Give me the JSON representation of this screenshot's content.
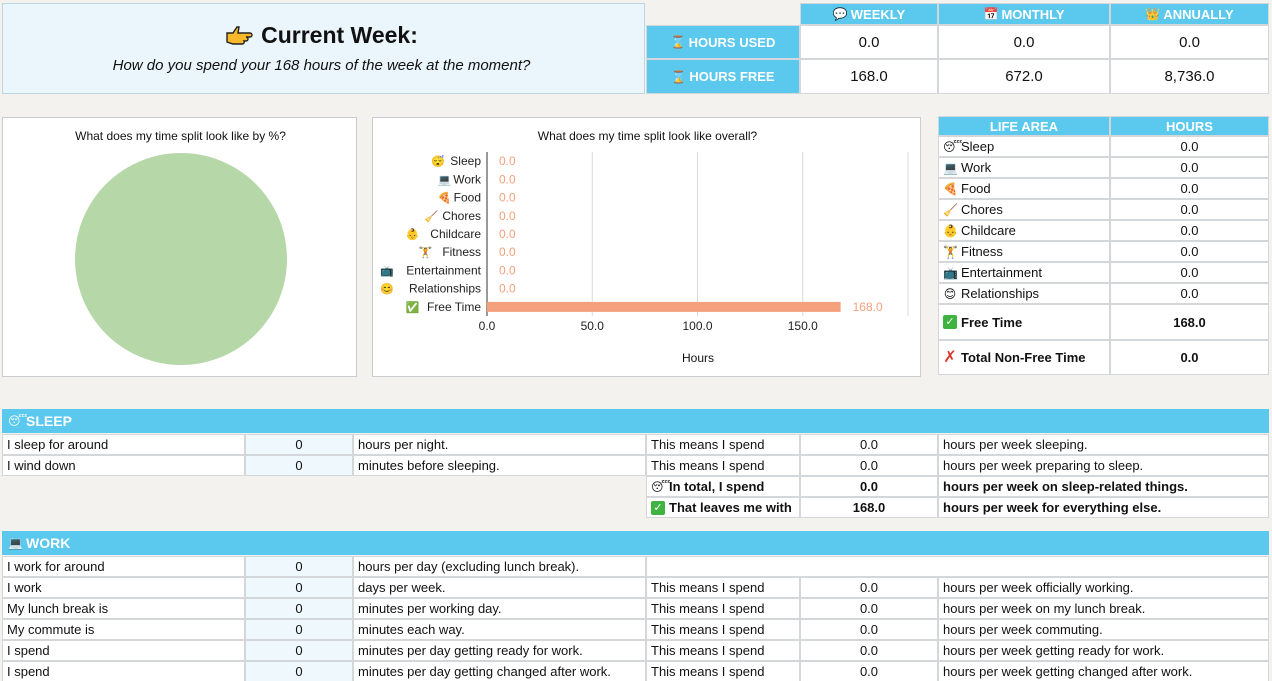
{
  "header": {
    "title": "Current Week:",
    "subtitle": "How do you spend your 168 hours of the week at the moment?",
    "icon": "pointing-hand-icon"
  },
  "summary": {
    "cols": [
      "WEEKLY",
      "MONTHLY",
      "ANNUALLY"
    ],
    "rows": [
      {
        "label": "HOURS USED",
        "values": [
          "0.0",
          "0.0",
          "0.0"
        ]
      },
      {
        "label": "HOURS FREE",
        "values": [
          "168.0",
          "672.0",
          "8,736.0"
        ]
      }
    ]
  },
  "pie_chart": {
    "title": "What does my time split look like by %?",
    "color": "#b6d7a8"
  },
  "chart_data": {
    "type": "bar",
    "title": "What does my time split look like overall?",
    "xlabel": "Hours",
    "ylabel": "",
    "categories": [
      "Sleep",
      "Work",
      "Food",
      "Chores",
      "Childcare",
      "Fitness",
      "Entertainment",
      "Relationships",
      "Free Time"
    ],
    "values": [
      0.0,
      0.0,
      0.0,
      0.0,
      0.0,
      0.0,
      0.0,
      0.0,
      168.0
    ],
    "value_labels": [
      "0.0",
      "0.0",
      "0.0",
      "0.0",
      "0.0",
      "0.0",
      "0.0",
      "0.0",
      "168.0"
    ],
    "xlim": [
      0,
      200
    ],
    "xticks": [
      "0.0",
      "50.0",
      "100.0",
      "150.0"
    ],
    "grid": true,
    "bar_color": "#f4a07c"
  },
  "life_area": {
    "headers": [
      "LIFE AREA",
      "HOURS"
    ],
    "rows": [
      {
        "label": "Sleep",
        "value": "0.0"
      },
      {
        "label": "Work",
        "value": "0.0"
      },
      {
        "label": "Food",
        "value": "0.0"
      },
      {
        "label": "Chores",
        "value": "0.0"
      },
      {
        "label": "Childcare",
        "value": "0.0"
      },
      {
        "label": "Fitness",
        "value": "0.0"
      },
      {
        "label": "Entertainment",
        "value": "0.0"
      },
      {
        "label": "Relationships",
        "value": "0.0"
      }
    ],
    "free_time": {
      "label": "Free Time",
      "value": "168.0"
    },
    "non_free": {
      "label": "Total Non-Free Time",
      "value": "0.0"
    }
  },
  "sleep": {
    "title": "SLEEP",
    "rows": [
      {
        "label": "I sleep for around",
        "input": "0",
        "unit": "hours per night.",
        "means": "This means I spend",
        "value": "0.0",
        "result": "hours per week sleeping."
      },
      {
        "label": "I wind down",
        "input": "0",
        "unit": "minutes before sleeping.",
        "means": "This means I spend",
        "value": "0.0",
        "result": "hours per week preparing to sleep."
      }
    ],
    "total": {
      "label": "In total, I spend",
      "value": "0.0",
      "result": "hours per week on sleep-related things."
    },
    "leaves": {
      "label": "That leaves me with",
      "value": "168.0",
      "result": "hours per week for everything else."
    }
  },
  "work": {
    "title": "WORK",
    "first": {
      "label": "I work for around",
      "input": "0",
      "unit": "hours per day (excluding lunch break)."
    },
    "rows": [
      {
        "label": "I work",
        "input": "0",
        "unit": "days per week.",
        "means": "This means I spend",
        "value": "0.0",
        "result": "hours per week officially working."
      },
      {
        "label": "My lunch break is",
        "input": "0",
        "unit": "minutes per working day.",
        "means": "This means I spend",
        "value": "0.0",
        "result": "hours per week on my lunch break."
      },
      {
        "label": "My commute is",
        "input": "0",
        "unit": "minutes each way.",
        "means": "This means I spend",
        "value": "0.0",
        "result": "hours per week commuting."
      },
      {
        "label": "I spend",
        "input": "0",
        "unit": "minutes per day getting ready for work.",
        "means": "This means I spend",
        "value": "0.0",
        "result": "hours per week getting ready for work."
      },
      {
        "label": "I spend",
        "input": "0",
        "unit": "minutes per day getting changed after work.",
        "means": "This means I spend",
        "value": "0.0",
        "result": "hours per week getting changed after work."
      }
    ]
  }
}
